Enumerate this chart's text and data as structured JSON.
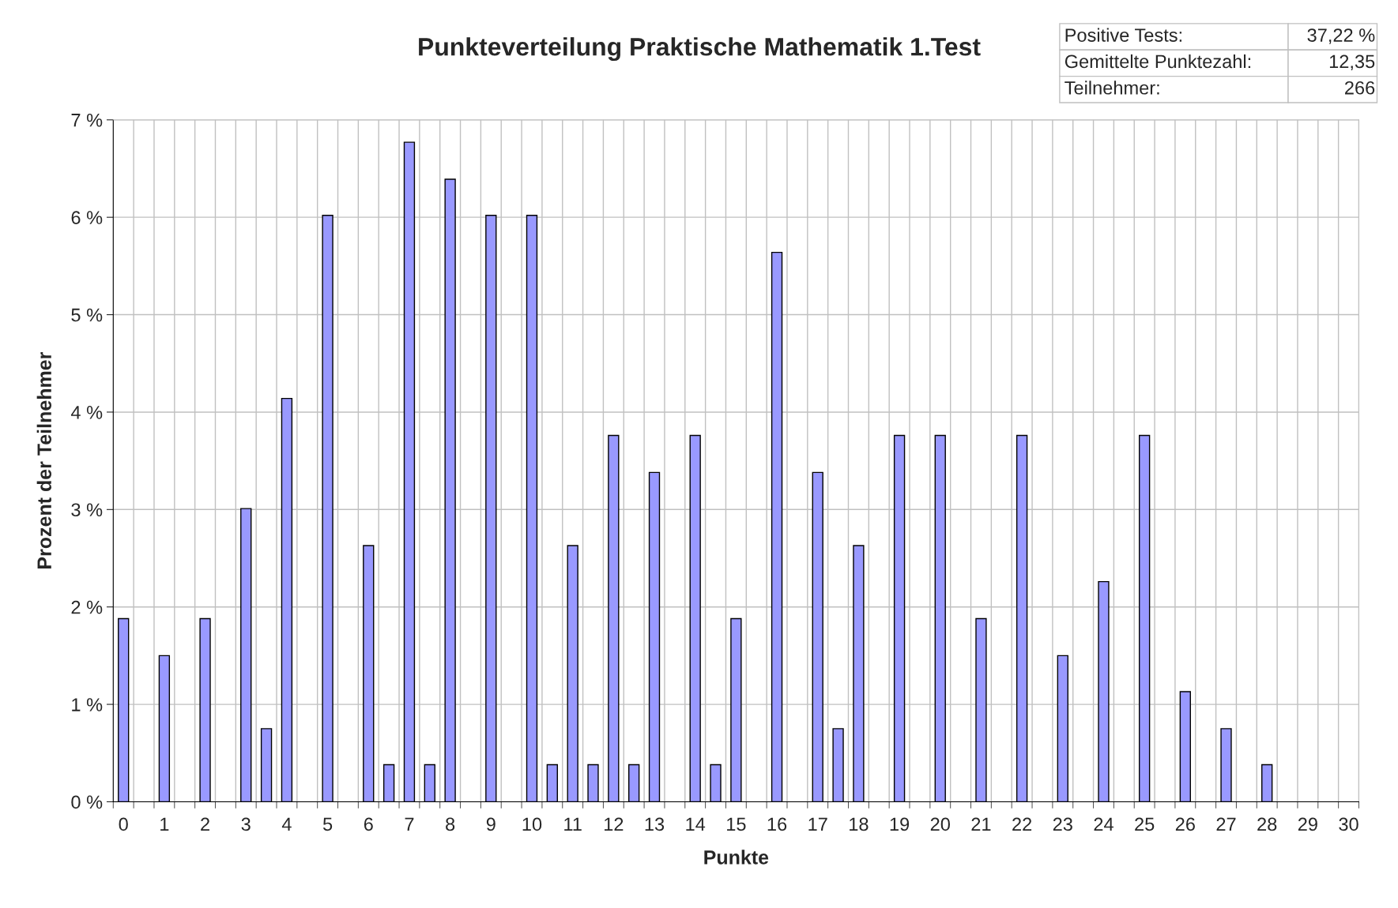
{
  "chart_data": {
    "type": "bar",
    "title": "Punkteverteilung Praktische Mathematik 1.Test",
    "xlabel": "Punkte",
    "ylabel": "Prozent der Teilnehmer",
    "categories": [
      "0",
      null,
      "1",
      null,
      "2",
      null,
      "3",
      null,
      "4",
      null,
      "5",
      null,
      "6",
      null,
      "7",
      null,
      "8",
      null,
      "9",
      null,
      "10",
      null,
      "11",
      null,
      "12",
      null,
      "13",
      null,
      "14",
      null,
      "15",
      null,
      "16",
      null,
      "17",
      null,
      "18",
      null,
      "19",
      null,
      "20",
      null,
      "21",
      null,
      "22",
      null,
      "23",
      null,
      "24",
      null,
      "25",
      null,
      "26",
      null,
      "27",
      null,
      "28",
      null,
      "29",
      null,
      "30"
    ],
    "values": [
      1.88,
      0,
      1.5,
      0,
      1.88,
      0,
      3.01,
      0.75,
      4.14,
      0,
      6.02,
      0,
      2.63,
      0.38,
      6.77,
      0.38,
      6.39,
      0,
      6.02,
      0,
      6.02,
      0.38,
      2.63,
      0.38,
      3.76,
      0.38,
      3.38,
      0,
      3.76,
      0.38,
      1.88,
      0,
      5.64,
      0,
      3.38,
      0.75,
      2.63,
      0,
      3.76,
      0,
      3.76,
      0,
      1.88,
      0,
      3.76,
      0,
      1.5,
      0,
      2.26,
      0,
      3.76,
      0,
      1.13,
      0,
      0.75,
      0,
      0.38,
      0,
      0,
      0,
      0
    ],
    "color": "#9999ff",
    "ylim": [
      0,
      7
    ],
    "yticks": [
      {
        "value": 0,
        "label": "0 %"
      },
      {
        "value": 1,
        "label": "1 %"
      },
      {
        "value": 2,
        "label": "2 %"
      },
      {
        "value": 3,
        "label": "3 %"
      },
      {
        "value": 4,
        "label": "4 %"
      },
      {
        "value": 5,
        "label": "5 %"
      },
      {
        "value": 6,
        "label": "6 %"
      },
      {
        "value": 7,
        "label": "7 %"
      }
    ],
    "grid": true,
    "annotations": [
      "Positive Tests:",
      "37,22 %",
      "Gemittelte Punktezahl:",
      "12,35",
      "Teilnehmer:",
      "266"
    ]
  }
}
